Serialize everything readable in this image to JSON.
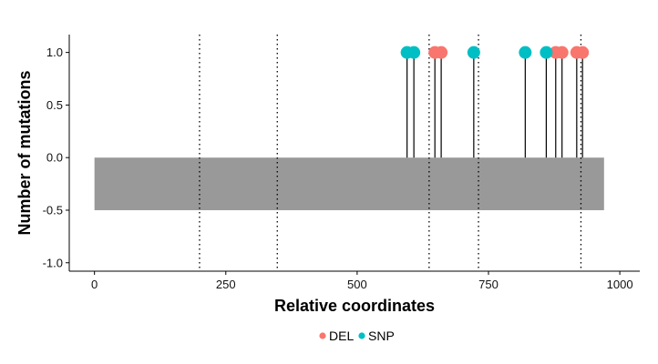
{
  "chart_data": {
    "type": "lollipop",
    "title": "",
    "xlabel": "Relative coordinates",
    "ylabel": "Number of mutations",
    "xlim": [
      -48,
      1038
    ],
    "ylim": [
      -1.08,
      1.17
    ],
    "x_ticks": [
      0,
      250,
      500,
      750,
      1000
    ],
    "x_tick_labels": [
      "0",
      "250",
      "500",
      "750",
      "1000"
    ],
    "y_ticks": [
      1.0,
      0.5,
      0.0,
      -0.5,
      -1.0
    ],
    "y_tick_labels": [
      "1.0",
      "0.5",
      "0.0",
      "-0.5",
      "-1.0"
    ],
    "grid": false,
    "region_bar": {
      "x_start": 0,
      "x_end": 970,
      "y_top": 0.0,
      "y_bottom": -0.5,
      "color": "#999999"
    },
    "vertical_dotted_lines": [
      200,
      348,
      637,
      731,
      926
    ],
    "legend": {
      "position": "bottom",
      "items": [
        {
          "label": "DEL",
          "color": "#F8766D"
        },
        {
          "label": "SNP",
          "color": "#00BFC4"
        }
      ]
    },
    "series": [
      {
        "name": "DEL",
        "color": "#F8766D",
        "x": [
          648,
          660,
          878,
          890,
          918,
          929
        ],
        "y": [
          1,
          1,
          1,
          1,
          1,
          1
        ]
      },
      {
        "name": "SNP",
        "color": "#00BFC4",
        "x": [
          595,
          608,
          722,
          820,
          860
        ],
        "y": [
          1,
          1,
          1,
          1,
          1
        ]
      }
    ]
  }
}
